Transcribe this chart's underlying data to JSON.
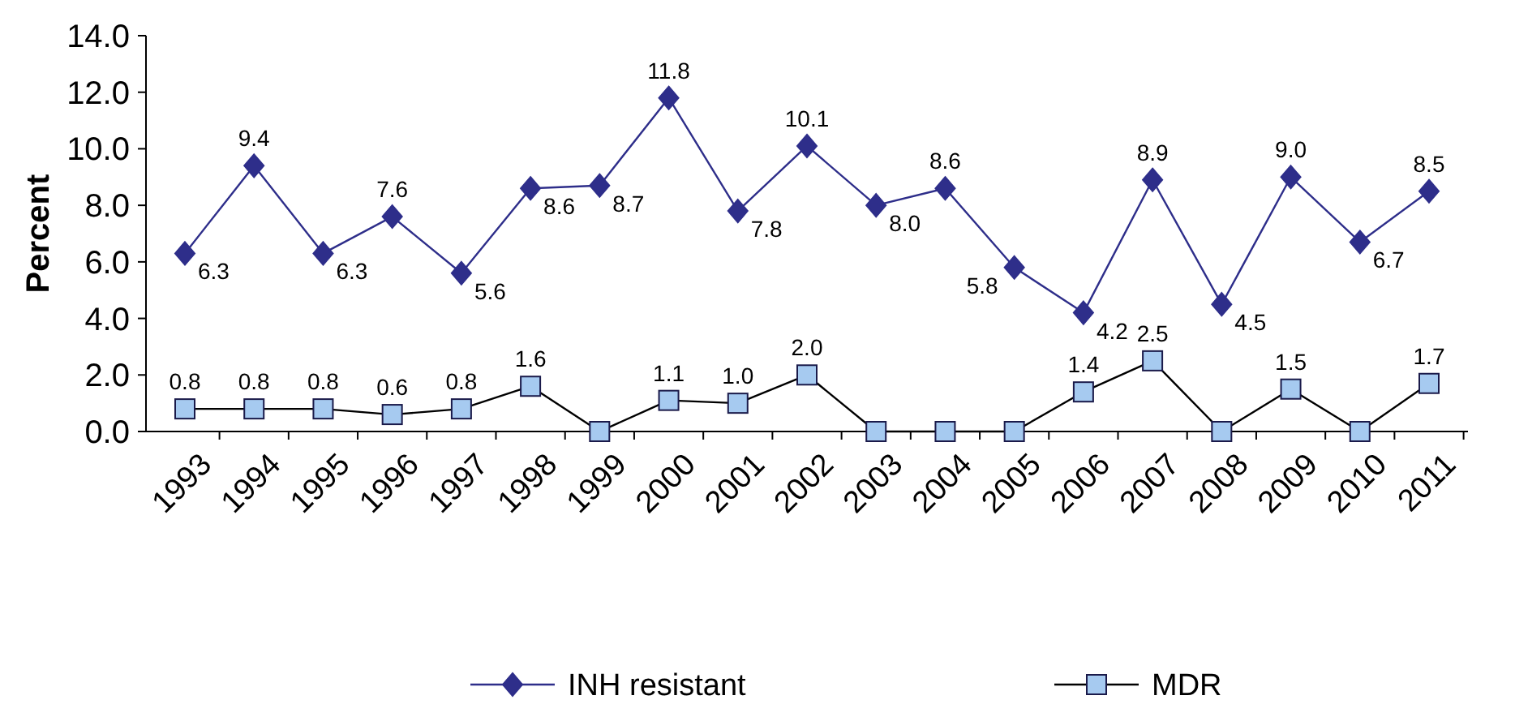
{
  "chart_data": {
    "type": "line",
    "ylabel": "Percent",
    "categories": [
      "1993",
      "1994",
      "1995",
      "1996",
      "1997",
      "1998",
      "1999",
      "2000",
      "2001",
      "2002",
      "2003",
      "2004",
      "2005",
      "2006",
      "2007",
      "2008",
      "2009",
      "2010",
      "2011"
    ],
    "ylim": [
      0,
      14
    ],
    "yticks": [
      {
        "value": 0,
        "label": "0.0"
      },
      {
        "value": 2,
        "label": "2.0"
      },
      {
        "value": 4,
        "label": "4.0"
      },
      {
        "value": 6,
        "label": "6.0"
      },
      {
        "value": 8,
        "label": "8.0"
      },
      {
        "value": 10,
        "label": "10.0"
      },
      {
        "value": 12,
        "label": "12.0"
      },
      {
        "value": 14,
        "label": "14.0"
      }
    ],
    "grid": false,
    "legend": "bottom",
    "series": [
      {
        "name": "INH resistant",
        "color": "#2e2e8a",
        "marker": "diamond",
        "values": [
          6.3,
          9.4,
          6.3,
          7.6,
          5.6,
          8.6,
          8.7,
          11.8,
          7.8,
          10.1,
          8.0,
          8.6,
          5.8,
          4.2,
          8.9,
          4.5,
          9.0,
          6.7,
          8.5
        ],
        "value_labels": [
          "6.3",
          "9.4",
          "6.3",
          "7.6",
          "5.6",
          "8.6",
          "8.7",
          "11.8",
          "7.8",
          "10.1",
          "8.0",
          "8.6",
          "5.8",
          "4.2",
          "8.9",
          "4.5",
          "9.0",
          "6.7",
          "8.5"
        ]
      },
      {
        "name": "MDR",
        "color": "#a6caf0",
        "marker": "square",
        "values": [
          0.8,
          0.8,
          0.8,
          0.6,
          0.8,
          1.6,
          0.0,
          1.1,
          1.0,
          2.0,
          0.0,
          0.0,
          0.0,
          1.4,
          2.5,
          0.0,
          1.5,
          0.0,
          1.7
        ],
        "value_labels": [
          "0.8",
          "0.8",
          "0.8",
          "0.6",
          "0.8",
          "1.6",
          null,
          "1.1",
          "1.0",
          "2.0",
          null,
          null,
          null,
          "1.4",
          "2.5",
          null,
          "1.5",
          null,
          "1.7"
        ]
      }
    ]
  }
}
